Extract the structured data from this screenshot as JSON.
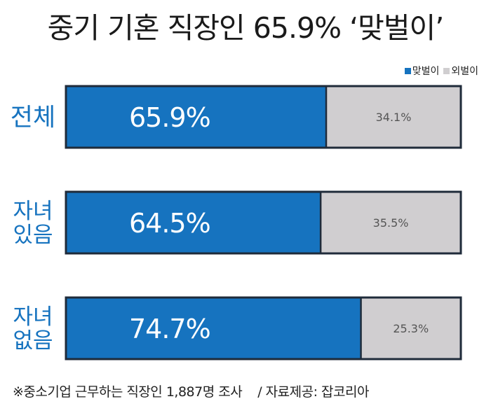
{
  "title": "중기 기혼 직장인 65.9% ‘맞벌이’",
  "legend": {
    "dual": "맞벌이",
    "single": "외벌이"
  },
  "colors": {
    "dual": "#1673bf",
    "single": "#d0ced0",
    "border": "#1f2b3a",
    "category_text": "#1673bf"
  },
  "footnote": {
    "survey": "※중소기업 근무하는 직장인 1,887명 조사",
    "source": "/ 자료제공: 잡코리아"
  },
  "chart_data": {
    "type": "bar",
    "orientation": "horizontal",
    "stacked": true,
    "title": "중기 기혼 직장인 65.9% ‘맞벌이’",
    "categories": [
      [
        "전체"
      ],
      [
        "자녀",
        "있음"
      ],
      [
        "자녀",
        "없음"
      ]
    ],
    "series": [
      {
        "name": "맞벌이",
        "values": [
          65.9,
          64.5,
          74.7
        ],
        "labels": [
          "65.9%",
          "64.5%",
          "74.7%"
        ]
      },
      {
        "name": "외벌이",
        "values": [
          34.1,
          35.5,
          25.3
        ],
        "labels": [
          "34.1%",
          "35.5%",
          "25.3%"
        ]
      }
    ],
    "xlim": [
      0,
      100
    ],
    "legend_position": "top-right",
    "grid": false
  }
}
